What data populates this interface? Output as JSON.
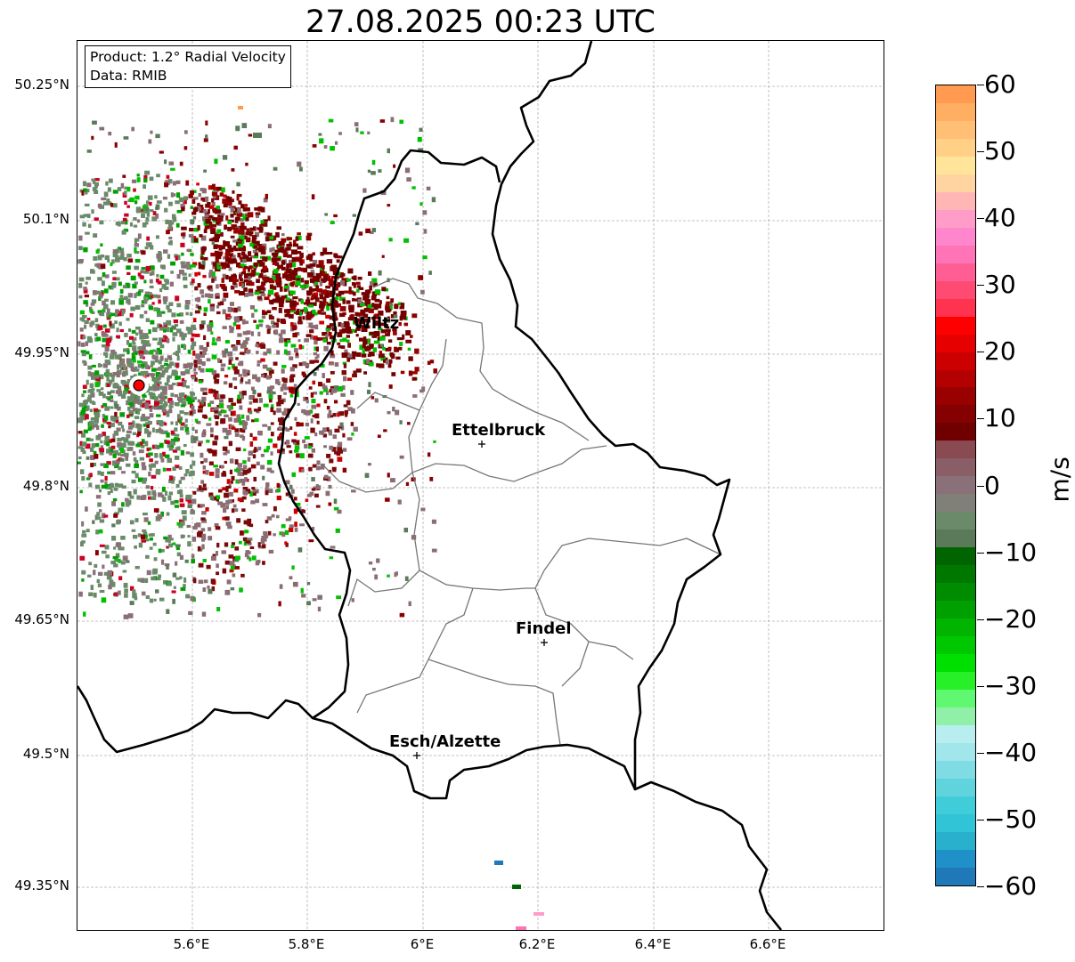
{
  "title": "27.08.2025 00:23 UTC",
  "info": {
    "product": "Product: 1.2° Radial Velocity",
    "data_source": "Data: RMIB"
  },
  "axes": {
    "lat_ticks": [
      "50.25°N",
      "50.1°N",
      "49.95°N",
      "49.8°N",
      "49.65°N",
      "49.5°N",
      "49.35°N"
    ],
    "lon_ticks": [
      "5.6°E",
      "5.8°E",
      "6°E",
      "6.2°E",
      "6.4°E",
      "6.6°E"
    ]
  },
  "cities": [
    {
      "name": "Wiltz"
    },
    {
      "name": "Ettelbruck"
    },
    {
      "name": "Findel"
    },
    {
      "name": "Esch/Alzette"
    }
  ],
  "colorbar": {
    "unit": "m/s",
    "tick_labels": [
      "60",
      "50",
      "40",
      "30",
      "20",
      "10",
      "0",
      "−10",
      "−20",
      "−30",
      "−40",
      "−50",
      "−60"
    ],
    "min": -60,
    "max": 60,
    "colors_top_to_bottom": [
      "#ff9a50",
      "#ffae62",
      "#ffbf74",
      "#ffd086",
      "#ffe49a",
      "#ffd4a0",
      "#ffb6b4",
      "#ff9cc8",
      "#ff86cc",
      "#ff74b6",
      "#ff5e94",
      "#ff4a72",
      "#ff3350",
      "#ff0000",
      "#e60000",
      "#cc0000",
      "#b30000",
      "#990000",
      "#850000",
      "#700000",
      "#8a4a52",
      "#8a5e66",
      "#8a7078",
      "#808078",
      "#6a8a6a",
      "#5a7a5a",
      "#006400",
      "#007800",
      "#008c00",
      "#00a000",
      "#00b400",
      "#00c800",
      "#00e000",
      "#28f028",
      "#60f870",
      "#90f0a8",
      "#b8eef0",
      "#a0e6ea",
      "#80dce4",
      "#60d4dc",
      "#40ccd8",
      "#30c4d6",
      "#28b0cc",
      "#2090c8",
      "#1f78b8"
    ],
    "palette": {
      "positive": "#990000",
      "negative": "#009000",
      "neutral_pos": "#8a6e74",
      "neutral_neg": "#6a8a6a"
    }
  }
}
